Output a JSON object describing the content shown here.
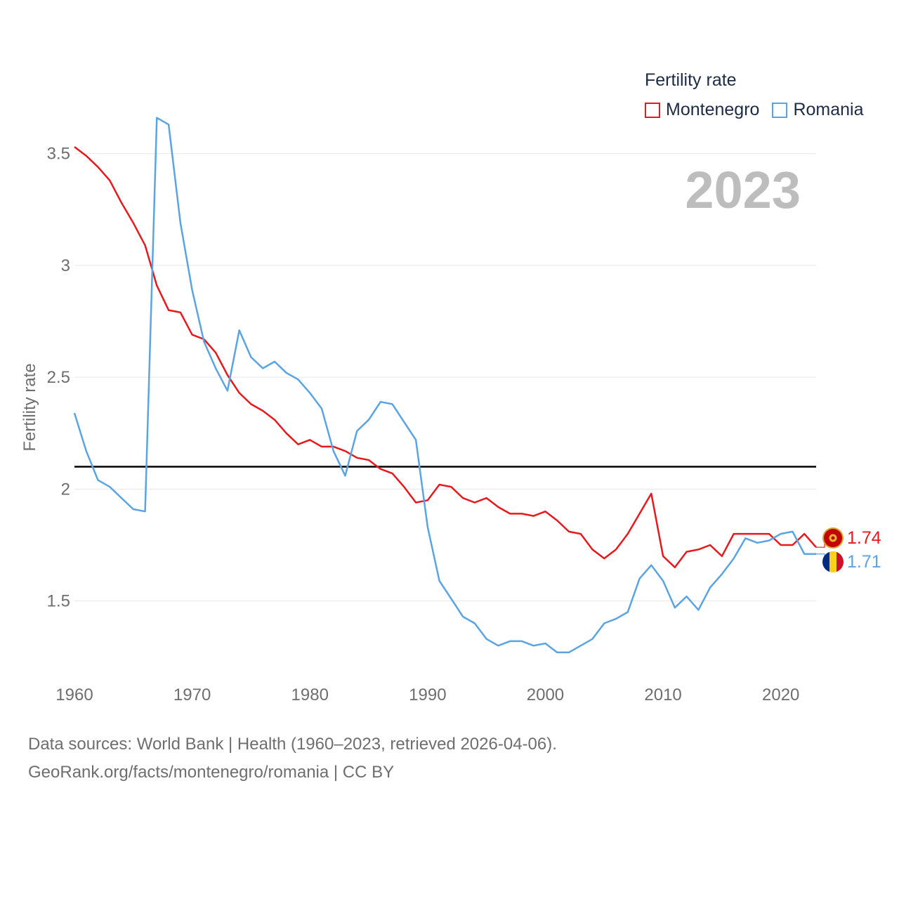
{
  "legend": {
    "title": "Fertility rate",
    "items": [
      {
        "name": "Montenegro",
        "color": "#e8191c"
      },
      {
        "name": "Romania",
        "color": "#5aa4e3"
      }
    ]
  },
  "year_label": "2023",
  "footer": {
    "line1": "Data sources: World Bank | Health (1960–2023, retrieved 2026-04-06).",
    "line2": "GeoRank.org/facts/montenegro/romania | CC BY"
  },
  "chart_data": {
    "type": "line",
    "title": "",
    "xlabel": "",
    "ylabel": "Fertility rate",
    "xlim": [
      1960,
      2023
    ],
    "ylim": [
      1.1,
      3.7
    ],
    "x_ticks": [
      "1960",
      "1970",
      "1980",
      "1990",
      "2000",
      "2010",
      "2020"
    ],
    "y_ticks": [
      "1.5",
      "2",
      "2.5",
      "3",
      "3.5"
    ],
    "reference_line": 2.1,
    "x": [
      1960,
      1961,
      1962,
      1963,
      1964,
      1965,
      1966,
      1967,
      1968,
      1969,
      1970,
      1971,
      1972,
      1973,
      1974,
      1975,
      1976,
      1977,
      1978,
      1979,
      1980,
      1981,
      1982,
      1983,
      1984,
      1985,
      1986,
      1987,
      1988,
      1989,
      1990,
      1991,
      1992,
      1993,
      1994,
      1995,
      1996,
      1997,
      1998,
      1999,
      2000,
      2001,
      2002,
      2003,
      2004,
      2005,
      2006,
      2007,
      2008,
      2009,
      2010,
      2011,
      2012,
      2013,
      2014,
      2015,
      2016,
      2017,
      2018,
      2019,
      2020,
      2021,
      2022,
      2023
    ],
    "series": [
      {
        "name": "Montenegro",
        "color": "#e8191c",
        "end_label": "1.74",
        "icon": "montenegro-flag-icon",
        "values": [
          3.53,
          3.49,
          3.44,
          3.38,
          3.28,
          3.19,
          3.09,
          2.91,
          2.8,
          2.79,
          2.69,
          2.67,
          2.61,
          2.51,
          2.43,
          2.38,
          2.35,
          2.31,
          2.25,
          2.2,
          2.22,
          2.19,
          2.19,
          2.17,
          2.14,
          2.13,
          2.09,
          2.07,
          2.01,
          1.94,
          1.95,
          2.02,
          2.01,
          1.96,
          1.94,
          1.96,
          1.92,
          1.89,
          1.89,
          1.88,
          1.9,
          1.86,
          1.81,
          1.8,
          1.73,
          1.69,
          1.73,
          1.8,
          1.89,
          1.98,
          1.7,
          1.65,
          1.72,
          1.73,
          1.75,
          1.7,
          1.8,
          1.8,
          1.8,
          1.8,
          1.75,
          1.75,
          1.8,
          1.74
        ]
      },
      {
        "name": "Romania",
        "color": "#5aa4e3",
        "end_label": "1.71",
        "icon": "romania-flag-icon",
        "values": [
          2.34,
          2.17,
          2.04,
          2.01,
          1.96,
          1.91,
          1.9,
          3.66,
          3.63,
          3.19,
          2.89,
          2.66,
          2.54,
          2.44,
          2.71,
          2.59,
          2.54,
          2.57,
          2.52,
          2.49,
          2.43,
          2.36,
          2.17,
          2.06,
          2.26,
          2.31,
          2.39,
          2.38,
          2.3,
          2.22,
          1.83,
          1.59,
          1.51,
          1.43,
          1.4,
          1.33,
          1.3,
          1.32,
          1.32,
          1.3,
          1.31,
          1.27,
          1.27,
          1.3,
          1.33,
          1.4,
          1.42,
          1.45,
          1.6,
          1.66,
          1.59,
          1.47,
          1.52,
          1.46,
          1.56,
          1.62,
          1.69,
          1.78,
          1.76,
          1.77,
          1.8,
          1.81,
          1.71,
          1.71
        ]
      }
    ]
  }
}
